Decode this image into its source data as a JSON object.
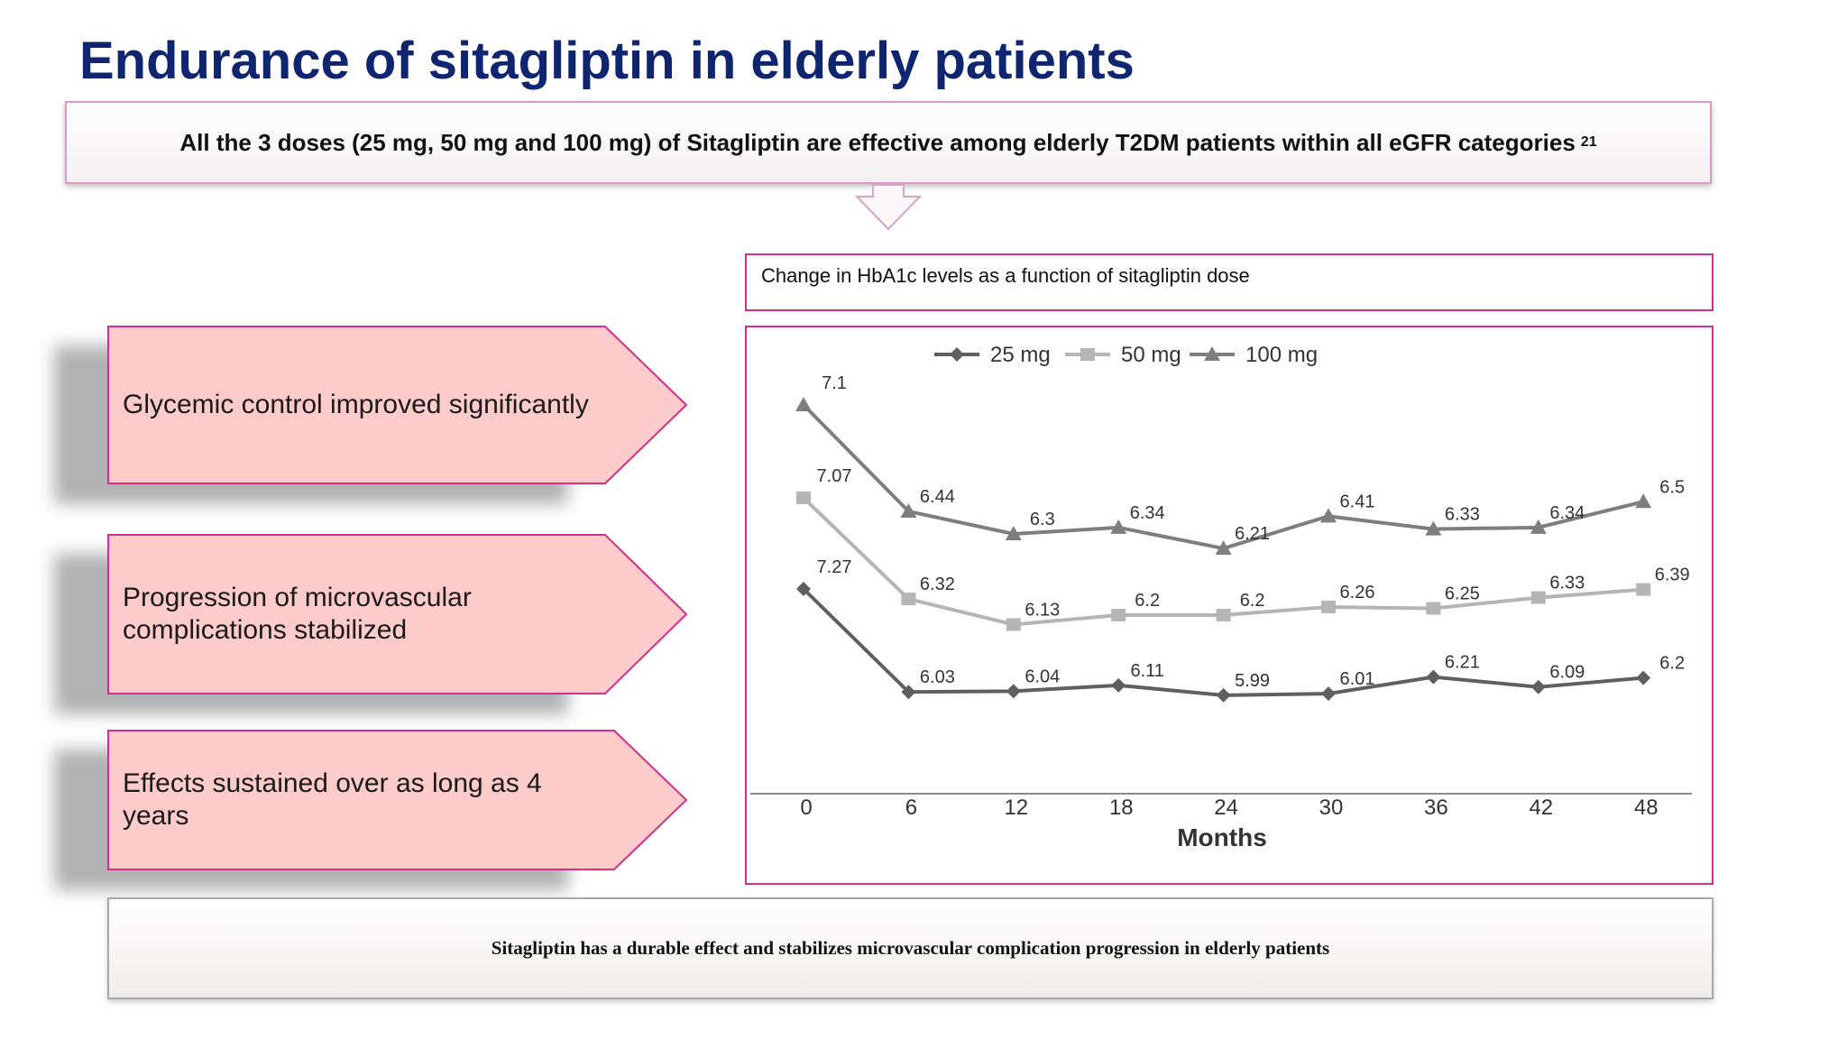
{
  "title": "Endurance of sitagliptin in elderly patients",
  "banner": {
    "text": "All the 3 doses (25 mg, 50 mg and 100 mg) of Sitagliptin are effective among elderly T2DM patients within all eGFR categories",
    "ref": "21"
  },
  "chart_caption": "Change in HbA1c levels as a function of sitagliptin dose",
  "key_points": [
    {
      "label": "Glycemic control improved significantly"
    },
    {
      "label": "Progression of microvascular complications stabilized"
    },
    {
      "label": "Effects sustained over as long as 4 years"
    }
  ],
  "footer": "Sitagliptin has a durable effect and stabilizes microvascular complication progression in elderly patients",
  "colors": {
    "title": "#0f2570",
    "accent_border": "#d0308e",
    "pentagon_fill": "#fecbcb",
    "series_25": "#5f5f5f",
    "series_50": "#b5b5b5",
    "series_100": "#7e7e7e"
  },
  "chart_data": {
    "type": "line",
    "title": "",
    "xlabel": "Months",
    "ylabel": "",
    "x": [
      0,
      6,
      12,
      18,
      24,
      30,
      36,
      42,
      48
    ],
    "series": [
      {
        "name": "25 mg",
        "marker": "diamond",
        "values": [
          7.27,
          6.03,
          6.04,
          6.11,
          5.99,
          6.01,
          6.21,
          6.09,
          6.2
        ]
      },
      {
        "name": "50 mg",
        "marker": "square",
        "values": [
          7.07,
          6.32,
          6.13,
          6.2,
          6.2,
          6.26,
          6.25,
          6.33,
          6.39
        ]
      },
      {
        "name": "100 mg",
        "marker": "triangle",
        "values": [
          7.1,
          6.44,
          6.3,
          6.34,
          6.21,
          6.41,
          6.33,
          6.34,
          6.5
        ]
      }
    ],
    "grid": false,
    "legend": "top-center",
    "data_labels": true
  }
}
